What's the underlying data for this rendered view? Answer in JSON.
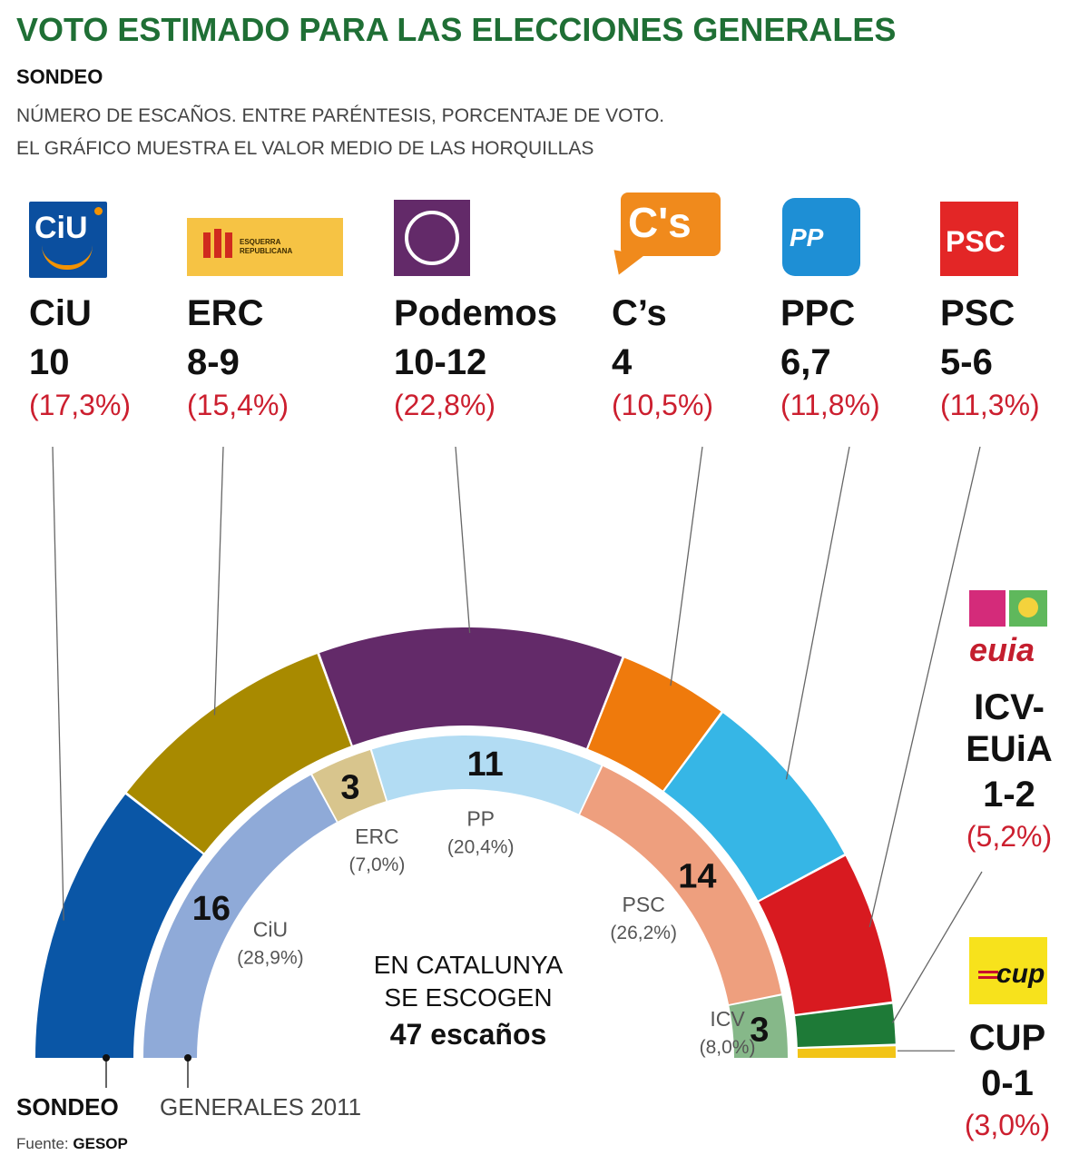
{
  "title": "VOTO ESTIMADO PARA LAS ELECCIONES GENERALES",
  "subtitle": "SONDEO",
  "notes": [
    "NÚMERO DE ESCAÑOS. ENTRE PARÉNTESIS, PORCENTAJE DE VOTO.",
    "EL GRÁFICO MUESTRA EL VALOR MEDIO DE LAS HORQUILLAS"
  ],
  "center_text": {
    "line1": "EN CATALUNYA",
    "line2": "SE ESCOGEN",
    "line3": "47 escaños"
  },
  "ring_labels": {
    "outer": "SONDEO",
    "inner": "GENERALES 2011"
  },
  "source": {
    "label": "Fuente:",
    "name": "GESOP"
  },
  "logos": {
    "ciu": "CiU",
    "erc": "ESQUERRA REPUBLICANA",
    "cs": "C's",
    "pp": "PP",
    "psc": "PSC",
    "cup": "cup"
  },
  "chart_data": [
    {
      "type": "pie",
      "ring": "outer",
      "label": "SONDEO",
      "total_seats": 47,
      "series": [
        {
          "name": "CiU",
          "seats_label": "10",
          "value": 10,
          "pct_label": "(17,3%)",
          "color": "#0a56a6"
        },
        {
          "name": "ERC",
          "seats_label": "8-9",
          "value": 8.5,
          "pct_label": "(15,4%)",
          "color": "#a88a00"
        },
        {
          "name": "Podemos",
          "seats_label": "10-12",
          "value": 11,
          "pct_label": "(22,8%)",
          "color": "#632a69"
        },
        {
          "name": "C’s",
          "seats_label": "4",
          "value": 4,
          "pct_label": "(10,5%)",
          "color": "#ef7a0c"
        },
        {
          "name": "PPC",
          "seats_label": "6,7",
          "value": 6.7,
          "pct_label": "(11,8%)",
          "color": "#36b6e6"
        },
        {
          "name": "PSC",
          "seats_label": "5-6",
          "value": 5.5,
          "pct_label": "(11,3%)",
          "color": "#d81a20"
        },
        {
          "name": "ICV-EUiA",
          "seats_label": "1-2",
          "value": 1.5,
          "pct_label": "(5,2%)",
          "color": "#1e7a37"
        },
        {
          "name": "CUP",
          "seats_label": "0-1",
          "value": 0.5,
          "pct_label": "(3,0%)",
          "color": "#f2c417"
        }
      ]
    },
    {
      "type": "pie",
      "ring": "inner",
      "label": "GENERALES 2011",
      "total_seats": 47,
      "series": [
        {
          "name": "CiU",
          "value": 16,
          "pct_label": "(28,9%)",
          "color": "#8faad8"
        },
        {
          "name": "ERC",
          "value": 3,
          "pct_label": "(7,0%)",
          "color": "#d8c58d"
        },
        {
          "name": "PP",
          "value": 11,
          "pct_label": "(20,4%)",
          "color": "#b2dcf3"
        },
        {
          "name": "PSC",
          "value": 14,
          "pct_label": "(26,2%)",
          "color": "#ee9f7e"
        },
        {
          "name": "ICV",
          "value": 3,
          "pct_label": "(8,0%)",
          "color": "#86b889"
        }
      ]
    }
  ]
}
